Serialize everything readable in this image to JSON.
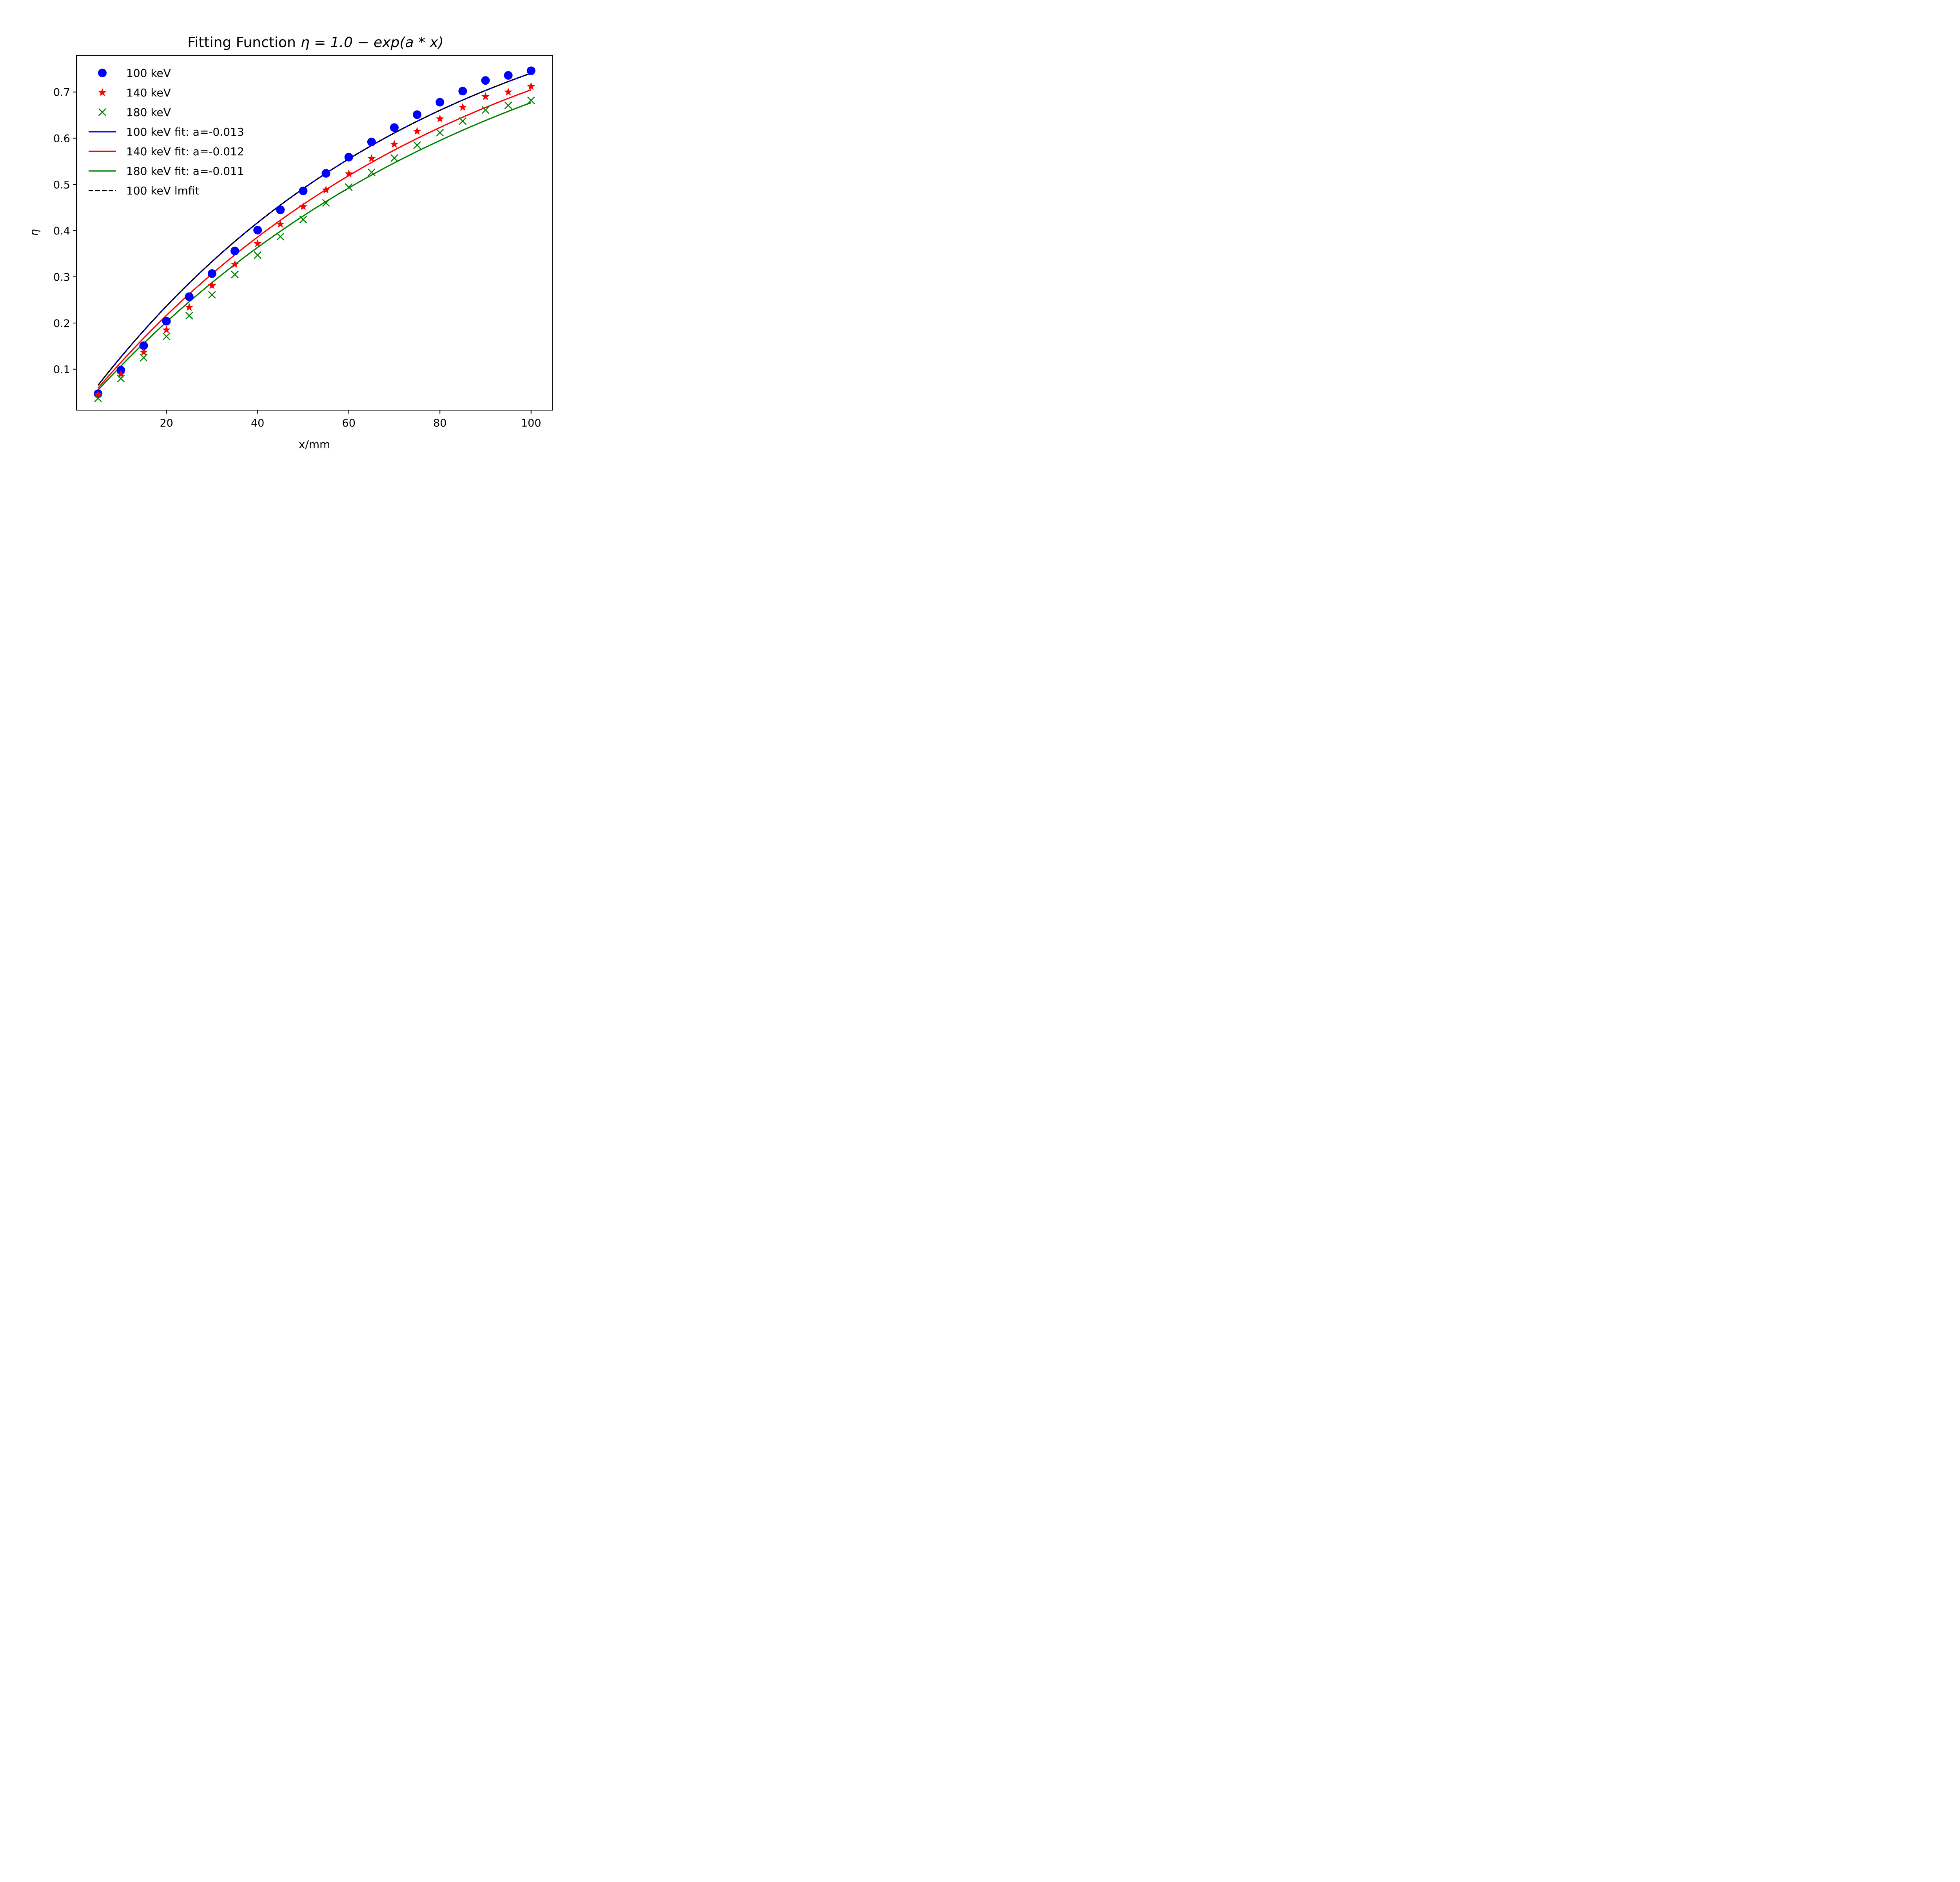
{
  "chart_data": {
    "type": "scatter",
    "title": "Fitting Function",
    "title_math": "η = 1.0 − exp(a * x)",
    "xlabel": "x/mm",
    "ylabel": "η",
    "xlim": [
      0.25,
      104.75
    ],
    "ylim": [
      0.0115,
      0.7795
    ],
    "xticks": [
      20,
      40,
      60,
      80,
      100
    ],
    "yticks": [
      0.1,
      0.2,
      0.3,
      0.4,
      0.5,
      0.6,
      0.7
    ],
    "grid": false,
    "legend_position": "upper-left",
    "x": [
      5,
      10,
      15,
      20,
      25,
      30,
      35,
      40,
      45,
      50,
      55,
      60,
      65,
      70,
      75,
      80,
      85,
      90,
      95,
      100
    ],
    "series": [
      {
        "name": "100 keV",
        "kind": "marker",
        "marker": "circle",
        "color": "#0000ff",
        "values": [
          0.047,
          0.098,
          0.151,
          0.204,
          0.257,
          0.307,
          0.356,
          0.401,
          0.445,
          0.486,
          0.524,
          0.559,
          0.592,
          0.623,
          0.651,
          0.678,
          0.702,
          0.725,
          0.736,
          0.746
        ]
      },
      {
        "name": "140 keV",
        "kind": "marker",
        "marker": "star",
        "color": "#ff0000",
        "values": [
          0.045,
          0.089,
          0.137,
          0.185,
          0.234,
          0.281,
          0.327,
          0.372,
          0.414,
          0.452,
          0.488,
          0.523,
          0.556,
          0.587,
          0.615,
          0.642,
          0.667,
          0.69,
          0.7,
          0.712
        ]
      },
      {
        "name": "180 keV",
        "kind": "marker",
        "marker": "x",
        "color": "#008000",
        "values": [
          0.037,
          0.08,
          0.125,
          0.171,
          0.216,
          0.261,
          0.305,
          0.347,
          0.387,
          0.424,
          0.46,
          0.494,
          0.526,
          0.557,
          0.585,
          0.612,
          0.637,
          0.661,
          0.671,
          0.682
        ]
      },
      {
        "name": "100 keV fit: a=-0.013",
        "kind": "line",
        "style": "solid",
        "color": "#0000ff",
        "a": -0.0135
      },
      {
        "name": "140 keV fit: a=-0.012",
        "kind": "line",
        "style": "solid",
        "color": "#ff0000",
        "a": -0.0122
      },
      {
        "name": "180 keV fit: a=-0.011",
        "kind": "line",
        "style": "solid",
        "color": "#008000",
        "a": -0.0113
      },
      {
        "name": "100 keV lmfit",
        "kind": "line",
        "style": "dashed",
        "color": "#000000",
        "a": -0.0135
      }
    ]
  }
}
